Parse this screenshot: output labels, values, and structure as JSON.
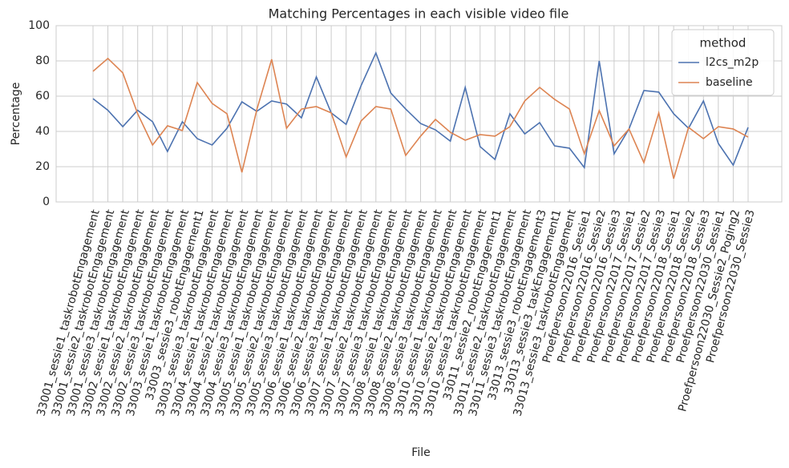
{
  "chart_data": {
    "type": "line",
    "title": "Matching Percentages in each visible video file",
    "x_label": "File",
    "y_label": "Percentage",
    "categories": [
      "33001_sessie1_taskrobotEngagement",
      "33001_sessie2_taskrobotEngagement",
      "33001_sessie3_taskrobotEngagement",
      "33002_sessie1_taskrobotEngagement",
      "33002_sessie2_taskrobotEngagement",
      "33002_sessie3_taskrobotEngagement",
      "33003_sessie1_taskrobotEngagement",
      "33003_sessie3_robotEngagement1",
      "33003_sessie3_taskrobotEngagement",
      "33004_sessie1_taskrobotEngagement",
      "33004_sessie2_taskrobotEngagement",
      "33004_sessie3_taskrobotEngagement",
      "33005_sessie1_taskrobotEngagement",
      "33005_sessie2_taskrobotEngagement",
      "33005_sessie3_taskrobotEngagement",
      "33006_sessie1_taskrobotEngagement",
      "33006_sessie2_taskrobotEngagement",
      "33006_sessie3_taskrobotEngagement",
      "33007_sessie1_taskrobotEngagement",
      "33007_sessie2_taskrobotEngagement",
      "33007_sessie3_taskrobotEngagement",
      "33008_sessie1_taskrobotEngagement",
      "33008_sessie2_taskrobotEngagement",
      "33008_sessie3_taskrobotEngagement",
      "33010_sessie1_taskrobotEngagement",
      "33010_sessie2_taskrobotEngagement",
      "33010_sessie3_taskrobotEngagement",
      "33011_sessie2_robotEngagement1",
      "33011_sessie2_taskrobotEngagement",
      "33011_sessie3_taskrobotEngagement",
      "33013_sessie3_robotEngagement3",
      "33013_sessie3_taskEngagement1",
      "33013_sessie3_taskrobotEngagement",
      "Proefpersoon22016_Sessie1",
      "Proefpersoon22016_Sessie2",
      "Proefpersoon22016_Sessie3",
      "Proefpersoon22017_Sessie1",
      "Proefpersoon22017_Sessie2",
      "Proefpersoon22017_Sessie3",
      "Proefpersoon22018_Sessie1",
      "Proefpersoon22018_Sessie2",
      "Proefpersoon22018_Sessie3",
      "Proefpersoon22030_Sessie1",
      "Proefpersoon22030_Sessie2_Poging2",
      "Proefpersoon22030_Sessie3"
    ],
    "series": [
      {
        "name": "l2cs_m2p",
        "color": "#4c72b0",
        "values": [
          58.6,
          52,
          42.7,
          52,
          45.5,
          28.6,
          45.5,
          35.9,
          32.3,
          41.8,
          56.8,
          51.4,
          57.3,
          55.5,
          47.7,
          70.9,
          50.5,
          44,
          65.9,
          84.5,
          61.8,
          52.7,
          44.5,
          40.9,
          34.5,
          65,
          31.4,
          24.1,
          50,
          38.6,
          45,
          31.8,
          30.5,
          19.5,
          80,
          27.3,
          41.4,
          63.2,
          62.3,
          50,
          41.8,
          57.3,
          33.2,
          20.9,
          42.3
        ]
      },
      {
        "name": "baseline",
        "color": "#dd8452",
        "values": [
          74.1,
          81.4,
          73.2,
          50,
          32.3,
          43.2,
          40.5,
          67.7,
          55.9,
          50,
          16.8,
          52.3,
          80.9,
          41.8,
          52.7,
          54.1,
          50.5,
          25.5,
          45.9,
          54.1,
          52.7,
          26.4,
          37.3,
          46.8,
          39.5,
          35,
          38.2,
          37.3,
          42.7,
          57.3,
          65,
          58.2,
          52.7,
          27.3,
          51.8,
          31.8,
          41.4,
          22.3,
          50.5,
          13.2,
          42.3,
          35.9,
          42.7,
          41.4,
          36.8
        ]
      }
    ],
    "legend_title": "method",
    "legend_position": "upper right",
    "ylim": [
      0,
      100
    ],
    "yticks": [
      0,
      20,
      40,
      60,
      80,
      100
    ],
    "grid": true
  }
}
